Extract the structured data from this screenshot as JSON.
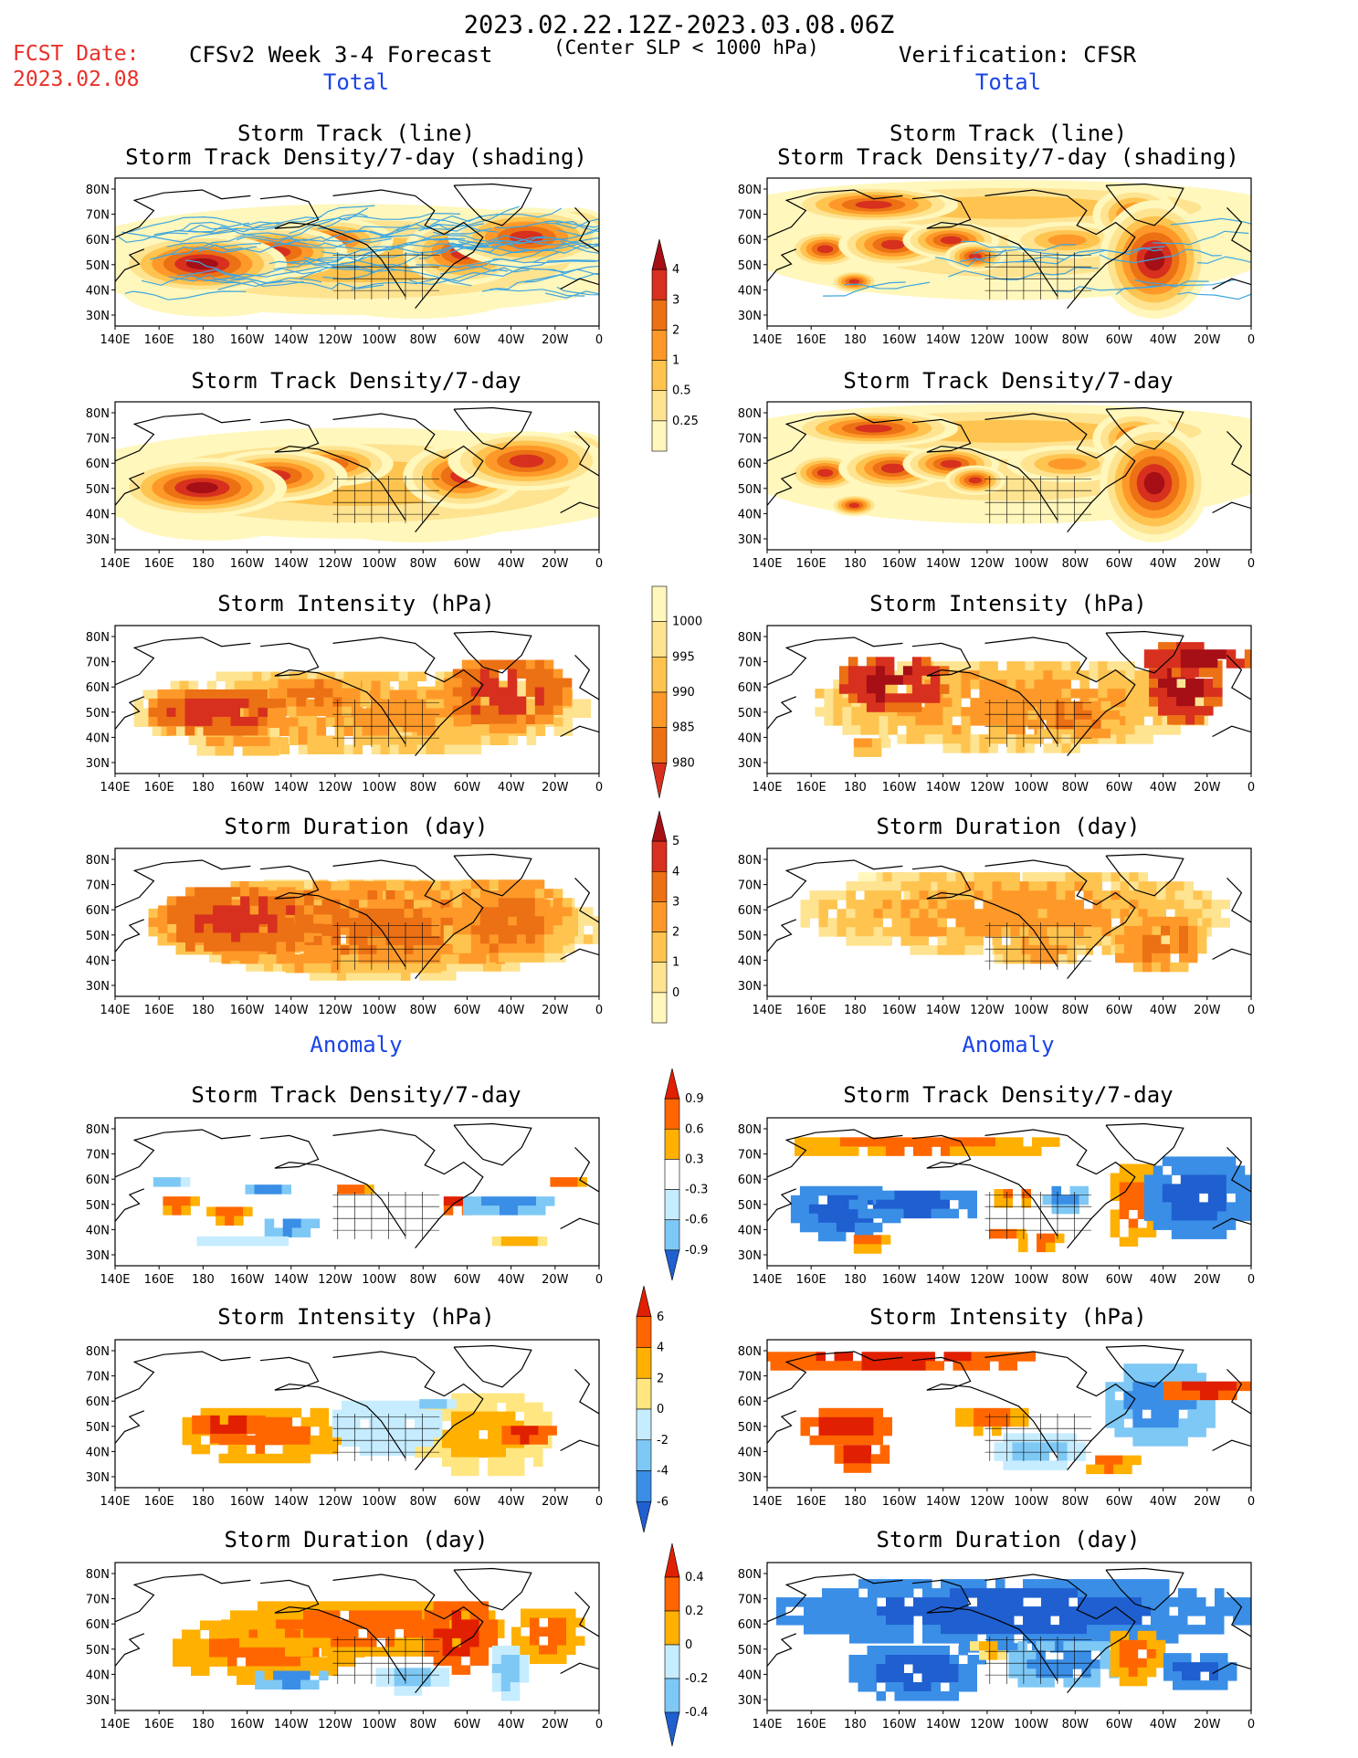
{
  "header": {
    "period": "2023.02.22.12Z-2023.03.08.06Z",
    "fcst_label": "FCST Date:",
    "fcst_date": "2023.02.08",
    "left_title": "CFSv2 Week 3-4 Forecast",
    "criterion": "(Center SLP < 1000 hPa)",
    "right_title": "Verification: CFSR",
    "total_label": "Total",
    "anomaly_label": "Anomaly"
  },
  "panel_titles": {
    "track_line": "Storm Track (line)",
    "track_shading": "Storm Track Density/7-day (shading)",
    "density": "Storm Track Density/7-day",
    "intensity": "Storm Intensity (hPa)",
    "duration": "Storm Duration (day)"
  },
  "axes": {
    "lat_labels": [
      "80N",
      "70N",
      "60N",
      "50N",
      "40N",
      "30N"
    ],
    "lon_labels": [
      "140E",
      "160E",
      "180",
      "160W",
      "140W",
      "120W",
      "100W",
      "80W",
      "60W",
      "40W",
      "20W",
      "0"
    ]
  },
  "colorbars": {
    "density_total": [
      "4",
      "3",
      "2",
      "1",
      "0.5",
      "0.25"
    ],
    "intensity_total": [
      "1000",
      "995",
      "990",
      "985",
      "980"
    ],
    "duration_total": [
      "5",
      "4",
      "3",
      "2",
      "1",
      "0"
    ],
    "density_anom": [
      "0.9",
      "0.6",
      "0.3",
      "-0.3",
      "-0.6",
      "-0.9"
    ],
    "intensity_anom": [
      "6",
      "4",
      "2",
      "0",
      "-2",
      "-4",
      "-6"
    ],
    "duration_anom": [
      "0.4",
      "0.2",
      "0",
      "-0.2",
      "-0.4"
    ]
  },
  "colors": {
    "total_scale": [
      "#fff7bc",
      "#fee391",
      "#fec44f",
      "#fe9929",
      "#ec7014",
      "#d7301f",
      "#a50f15"
    ],
    "anom_warm": [
      "#ffe680",
      "#ffb000",
      "#ff6600",
      "#e02000"
    ],
    "anom_cool": [
      "#c6ecff",
      "#7ec8f5",
      "#3a8ee6",
      "#1f5fd0"
    ],
    "track_line": "#3fa6e0",
    "fcst_red": "#e8312a",
    "label_blue": "#1a44e8"
  }
}
